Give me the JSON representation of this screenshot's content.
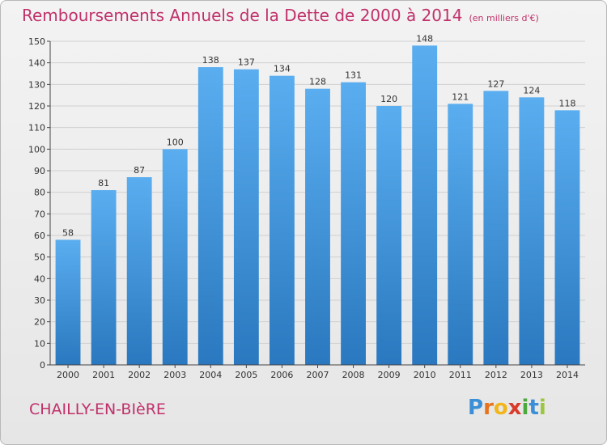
{
  "header": {
    "title": "Remboursements Annuels de la Dette de 2000 à 2014",
    "unit": "(en milliers d'€)"
  },
  "footer": {
    "commune": "CHAILLY-EN-BIèRE",
    "logo": {
      "letters": [
        "P",
        "r",
        "o",
        "x",
        "i",
        "t",
        "i"
      ],
      "colors": [
        "#3a8fd6",
        "#e8731c",
        "#f2b61c",
        "#d93a2b",
        "#4aa83c",
        "#3a8fd6",
        "#9cc640"
      ]
    }
  },
  "colors": {
    "bar_light": "#5aaef0",
    "bar_dark": "#2a78bf",
    "title": "#c0306a",
    "axis": "#444444",
    "grid": "#d0d0d0"
  },
  "chart_data": {
    "type": "bar",
    "categories": [
      "2000",
      "2001",
      "2002",
      "2003",
      "2004",
      "2005",
      "2006",
      "2007",
      "2008",
      "2009",
      "2010",
      "2011",
      "2012",
      "2013",
      "2014"
    ],
    "values": [
      58,
      81,
      87,
      100,
      138,
      137,
      134,
      128,
      131,
      120,
      148,
      121,
      127,
      124,
      118
    ],
    "title": "Remboursements Annuels de la Dette de 2000 à 2014",
    "xlabel": "",
    "ylabel": "",
    "ylim": [
      0,
      150
    ],
    "yticks": [
      0,
      10,
      20,
      30,
      40,
      50,
      60,
      70,
      80,
      90,
      100,
      110,
      120,
      130,
      140,
      150
    ],
    "grid": true,
    "data_labels": true
  }
}
